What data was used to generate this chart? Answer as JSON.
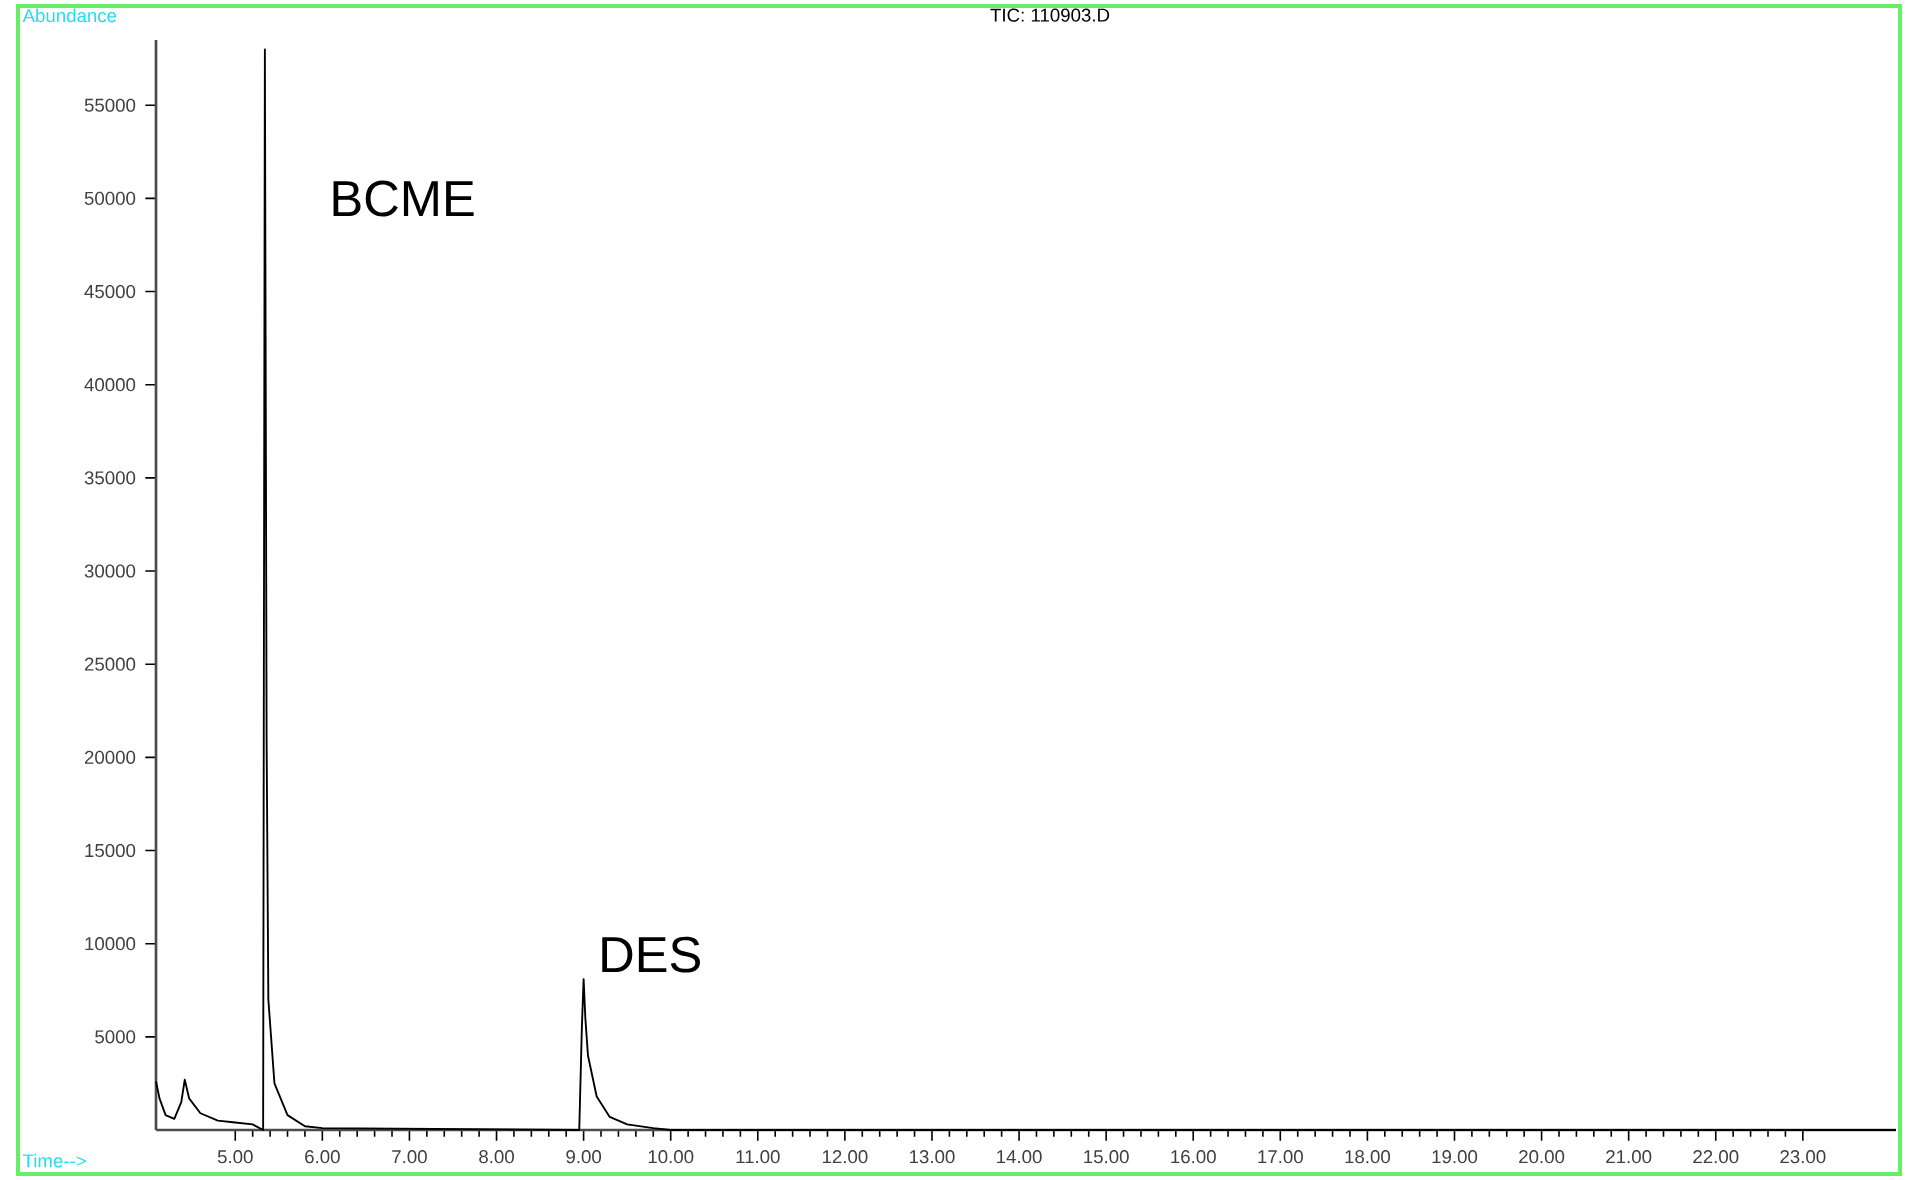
{
  "chart_data": {
    "type": "line",
    "title": "TIC: 110903.D",
    "xlabel": "Time-->",
    "ylabel": "Abundance",
    "x": [
      4.09,
      4.13,
      4.2,
      4.3,
      4.38,
      4.42,
      4.47,
      4.6,
      4.8,
      5.0,
      5.2,
      5.32,
      5.34,
      5.36,
      5.38,
      5.45,
      5.6,
      5.8,
      6.0,
      8.95,
      8.98,
      9.0,
      9.02,
      9.05,
      9.15,
      9.3,
      9.5,
      9.8,
      10.0,
      24.07
    ],
    "series": [
      {
        "color": "#000000",
        "values": [
          2600,
          1700,
          800,
          600,
          1500,
          2700,
          1700,
          900,
          500,
          400,
          300,
          0,
          58000,
          21000,
          7000,
          2500,
          800,
          200,
          100,
          0,
          5500,
          8100,
          6000,
          4000,
          1800,
          700,
          300,
          100,
          0,
          0
        ]
      }
    ],
    "xlim": [
      4.09,
      24.07
    ],
    "ylim": [
      0,
      58500
    ],
    "xticks": [
      {
        "value": 5,
        "label": "5.00"
      },
      {
        "value": 6,
        "label": "6.00"
      },
      {
        "value": 7,
        "label": "7.00"
      },
      {
        "value": 8,
        "label": "8.00"
      },
      {
        "value": 9,
        "label": "9.00"
      },
      {
        "value": 10,
        "label": "10.00"
      },
      {
        "value": 11,
        "label": "11.00"
      },
      {
        "value": 12,
        "label": "12.00"
      },
      {
        "value": 13,
        "label": "13.00"
      },
      {
        "value": 14,
        "label": "14.00"
      },
      {
        "value": 15,
        "label": "15.00"
      },
      {
        "value": 16,
        "label": "16.00"
      },
      {
        "value": 17,
        "label": "17.00"
      },
      {
        "value": 18,
        "label": "18.00"
      },
      {
        "value": 19,
        "label": "19.00"
      },
      {
        "value": 20,
        "label": "20.00"
      },
      {
        "value": 21,
        "label": "21.00"
      },
      {
        "value": 22,
        "label": "22.00"
      },
      {
        "value": 23,
        "label": "23.00"
      }
    ],
    "yticks": [
      5000,
      10000,
      15000,
      20000,
      25000,
      30000,
      35000,
      40000,
      45000,
      50000,
      55000
    ],
    "annotations": [
      {
        "text": "BCME",
        "x": 5.34,
        "y": 49000
      },
      {
        "text": "DES",
        "x": 9.0,
        "y": 8100
      }
    ],
    "grid": false,
    "marker": "none",
    "line_style": "solid"
  }
}
